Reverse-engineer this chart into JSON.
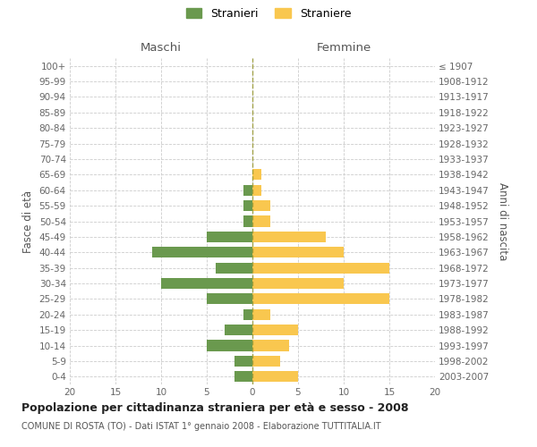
{
  "age_groups": [
    "0-4",
    "5-9",
    "10-14",
    "15-19",
    "20-24",
    "25-29",
    "30-34",
    "35-39",
    "40-44",
    "45-49",
    "50-54",
    "55-59",
    "60-64",
    "65-69",
    "70-74",
    "75-79",
    "80-84",
    "85-89",
    "90-94",
    "95-99",
    "100+"
  ],
  "birth_years": [
    "2003-2007",
    "1998-2002",
    "1993-1997",
    "1988-1992",
    "1983-1987",
    "1978-1982",
    "1973-1977",
    "1968-1972",
    "1963-1967",
    "1958-1962",
    "1953-1957",
    "1948-1952",
    "1943-1947",
    "1938-1942",
    "1933-1937",
    "1928-1932",
    "1923-1927",
    "1918-1922",
    "1913-1917",
    "1908-1912",
    "≤ 1907"
  ],
  "maschi": [
    2,
    2,
    5,
    3,
    1,
    5,
    10,
    4,
    11,
    5,
    1,
    1,
    1,
    0,
    0,
    0,
    0,
    0,
    0,
    0,
    0
  ],
  "femmine": [
    5,
    3,
    4,
    5,
    2,
    15,
    10,
    15,
    10,
    8,
    2,
    2,
    1,
    1,
    0,
    0,
    0,
    0,
    0,
    0,
    0
  ],
  "maschi_color": "#6a994e",
  "femmine_color": "#f9c74f",
  "background_color": "#ffffff",
  "grid_color": "#cccccc",
  "title": "Popolazione per cittadinanza straniera per età e sesso - 2008",
  "subtitle": "COMUNE DI ROSTA (TO) - Dati ISTAT 1° gennaio 2008 - Elaborazione TUTTITALIA.IT",
  "ylabel_left": "Fasce di età",
  "ylabel_right": "Anni di nascita",
  "xlabel_left": "Maschi",
  "xlabel_top_right": "Femmine",
  "legend_maschi": "Stranieri",
  "legend_femmine": "Straniere",
  "xlim": 20,
  "bar_height": 0.7
}
